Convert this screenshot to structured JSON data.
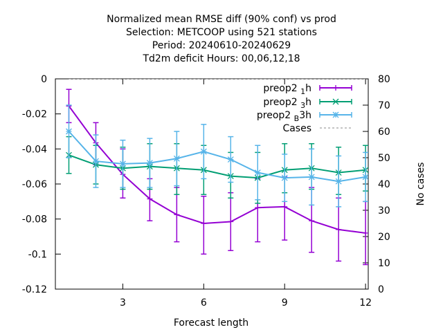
{
  "chart_data": {
    "type": "line",
    "title_lines": [
      "Normalized mean RMSE diff (90% conf) vs prod",
      "Selection: METCOOP using   521 stations",
      "Period: 20240610-20240629",
      "Td2m deficit   Hours:  00,06,12,18"
    ],
    "xlabel": "Forecast length",
    "ylabel": "",
    "y2label": "No cases",
    "xlim": [
      0.5,
      12.1
    ],
    "ylim": [
      -0.12,
      0
    ],
    "y2lim": [
      0,
      80
    ],
    "x_ticks": [
      3,
      6,
      9,
      12
    ],
    "y_ticks": [
      0,
      -0.02,
      -0.04,
      -0.06,
      -0.08,
      -0.1,
      -0.12
    ],
    "y2_ticks": [
      80,
      70,
      60,
      50,
      40,
      30,
      20,
      10,
      0
    ],
    "x_tick_labels": [
      "3",
      "6",
      "9",
      "12"
    ],
    "y_tick_labels": [
      "0",
      "-0.02",
      "-0.04",
      "-0.06",
      "-0.08",
      "-0.1",
      "-0.12"
    ],
    "y2_tick_labels": [
      "80",
      "70",
      "60",
      "50",
      "40",
      "30",
      "20",
      "10",
      "0"
    ],
    "grid": false,
    "legend_position": "top-right",
    "x": [
      1,
      2,
      3,
      4,
      5,
      6,
      7,
      8,
      9,
      10,
      11,
      12
    ],
    "series": [
      {
        "legend_main": "preop2",
        "legend_sub": "1",
        "legend_tail": "h",
        "color": "#9400d3",
        "marker": "plus",
        "values": [
          -0.0155,
          -0.0365,
          -0.0545,
          -0.0685,
          -0.0775,
          -0.0825,
          -0.0815,
          -0.0735,
          -0.073,
          -0.081,
          -0.086,
          -0.088
        ],
        "err_low": [
          -0.025,
          -0.049,
          -0.068,
          -0.081,
          -0.093,
          -0.1,
          -0.098,
          -0.093,
          -0.092,
          -0.099,
          -0.104,
          -0.106
        ],
        "err_high": [
          -0.006,
          -0.025,
          -0.04,
          -0.057,
          -0.062,
          -0.067,
          -0.065,
          -0.057,
          -0.056,
          -0.062,
          -0.068,
          -0.07
        ]
      },
      {
        "legend_main": "preop2",
        "legend_sub": "3",
        "legend_tail": "h",
        "color": "#009e73",
        "marker": "cross",
        "values": [
          -0.0435,
          -0.049,
          -0.051,
          -0.05,
          -0.051,
          -0.052,
          -0.0555,
          -0.0565,
          -0.052,
          -0.051,
          -0.0535,
          -0.052
        ],
        "err_low": [
          -0.054,
          -0.06,
          -0.063,
          -0.063,
          -0.066,
          -0.066,
          -0.068,
          -0.071,
          -0.065,
          -0.063,
          -0.066,
          -0.064
        ],
        "err_high": [
          -0.033,
          -0.038,
          -0.039,
          -0.037,
          -0.037,
          -0.038,
          -0.042,
          -0.042,
          -0.037,
          -0.037,
          -0.039,
          -0.038
        ]
      },
      {
        "legend_main": "preop2",
        "legend_sub": "B",
        "legend_tail": "3h",
        "color": "#56b4e9",
        "marker": "star",
        "values": [
          -0.03,
          -0.047,
          -0.0485,
          -0.048,
          -0.0455,
          -0.0415,
          -0.046,
          -0.0535,
          -0.0565,
          -0.056,
          -0.0585,
          -0.056
        ],
        "err_low": [
          -0.045,
          -0.062,
          -0.062,
          -0.062,
          -0.061,
          -0.057,
          -0.059,
          -0.069,
          -0.07,
          -0.072,
          -0.073,
          -0.07
        ],
        "err_high": [
          -0.015,
          -0.032,
          -0.035,
          -0.034,
          -0.03,
          -0.026,
          -0.033,
          -0.038,
          -0.043,
          -0.04,
          -0.044,
          -0.042
        ]
      }
    ],
    "cases_series": {
      "name": "Cases",
      "color": "#888888",
      "axis": "right",
      "values": [
        80,
        80,
        80,
        80,
        80,
        80,
        80,
        80,
        80,
        80,
        80,
        80
      ]
    }
  }
}
